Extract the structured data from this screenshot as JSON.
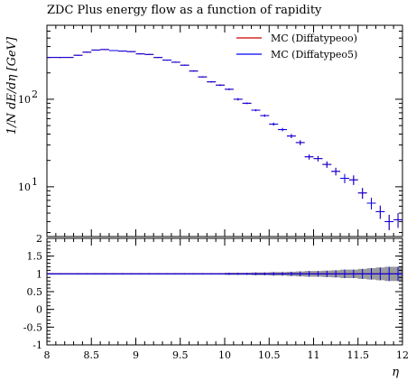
{
  "title": "ZDC Plus energy flow as a function of rapidity",
  "chart_data": {
    "type": "scatter",
    "title": "ZDC Plus energy flow as a function of rapidity",
    "xlabel": "η",
    "ylabel": "1/N dE/dη [GeV]",
    "ratio_ylabel": "",
    "x_range": [
      8,
      12
    ],
    "y_range_log": [
      2.7,
      700
    ],
    "y_scale": "log",
    "ratio_range": [
      -1,
      2
    ],
    "legend_position": "top-right",
    "x_ticks": [
      "8",
      "8.5",
      "9",
      "9.5",
      "10",
      "10.5",
      "11",
      "11.5",
      "12"
    ],
    "y_tick_labels": [
      "10^1",
      "10^2"
    ],
    "ratio_ticks": [
      "-1",
      "-0.5",
      "0",
      "0.5",
      "1",
      "1.5",
      "2"
    ],
    "series": [
      {
        "name": "MC (Diffatypeoo)",
        "color": "#cc0000"
      },
      {
        "name": "MC (Diffatypeo5)",
        "color": "#0000ee"
      }
    ],
    "points": {
      "x": [
        8.15,
        8.35,
        8.45,
        8.55,
        8.65,
        8.75,
        8.85,
        8.95,
        9.05,
        9.15,
        9.25,
        9.35,
        9.45,
        9.55,
        9.65,
        9.75,
        9.85,
        9.95,
        10.05,
        10.15,
        10.25,
        10.35,
        10.45,
        10.55,
        10.65,
        10.75,
        10.85,
        10.95,
        11.05,
        11.15,
        11.25,
        11.35,
        11.45,
        11.55,
        11.65,
        11.75,
        11.85,
        11.95
      ],
      "xerr": [
        0.15,
        0.05,
        0.05,
        0.05,
        0.05,
        0.05,
        0.05,
        0.05,
        0.05,
        0.05,
        0.05,
        0.05,
        0.05,
        0.05,
        0.05,
        0.05,
        0.05,
        0.05,
        0.05,
        0.05,
        0.05,
        0.05,
        0.05,
        0.05,
        0.05,
        0.05,
        0.05,
        0.05,
        0.05,
        0.05,
        0.05,
        0.05,
        0.05,
        0.05,
        0.05,
        0.05,
        0.05,
        0.05
      ],
      "y": [
        300,
        318,
        345,
        365,
        370,
        360,
        355,
        350,
        330,
        325,
        300,
        280,
        265,
        245,
        210,
        180,
        158,
        145,
        130,
        100,
        90,
        75,
        65,
        52,
        45,
        38,
        32,
        22,
        21,
        18,
        15,
        12.5,
        12,
        8.5,
        6.5,
        5.2,
        4.0,
        4.2
      ],
      "yerr": [
        4,
        4,
        4,
        4,
        4,
        4,
        4,
        4,
        4,
        4,
        4,
        4,
        4,
        4,
        4,
        3,
        3,
        3,
        3,
        3,
        2,
        2,
        2,
        2,
        2,
        2,
        2,
        1.5,
        1.5,
        1.5,
        1.5,
        1.5,
        1.5,
        1.2,
        1.0,
        0.9,
        0.8,
        0.8
      ],
      "ratio_band": [
        0.02,
        0.02,
        0.02,
        0.02,
        0.02,
        0.02,
        0.02,
        0.02,
        0.02,
        0.02,
        0.02,
        0.02,
        0.02,
        0.02,
        0.02,
        0.02,
        0.02,
        0.02,
        0.03,
        0.03,
        0.03,
        0.04,
        0.04,
        0.05,
        0.05,
        0.06,
        0.07,
        0.08,
        0.08,
        0.09,
        0.1,
        0.12,
        0.12,
        0.14,
        0.16,
        0.18,
        0.2,
        0.2
      ]
    }
  }
}
